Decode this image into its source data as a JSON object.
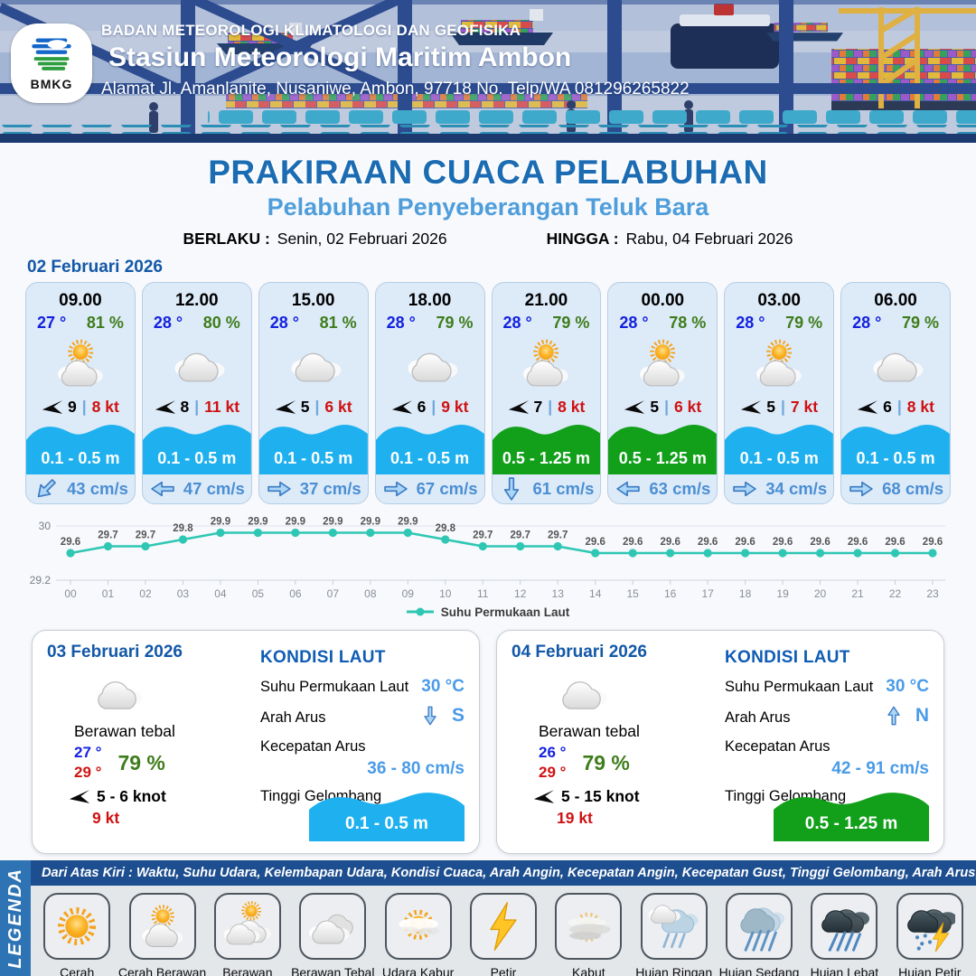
{
  "header": {
    "logo_text": "BMKG",
    "org": "BADAN METEOROLOGI KLIMATOLOGI DAN GEOFISIKA",
    "station": "Stasiun Meteorologi Maritim Ambon",
    "address": "Alamat Jl. Amanlanite, Nusaniwe, Ambon, 97718   No. Telp/WA  081296265822"
  },
  "title": {
    "main": "PRAKIRAAN CUACA PELABUHAN",
    "sub": "Pelabuhan Penyeberangan Teluk Bara",
    "berlaku_label": "BERLAKU :",
    "berlaku_value": "Senin, 02 Februari 2026",
    "hingga_label": "HINGGA :",
    "hingga_value": "Rabu, 04 Februari 2026"
  },
  "colors": {
    "wave_blue": "#1fb1ef",
    "wave_green": "#12a01b",
    "accent_blue": "#1b6cb3",
    "chart_teal": "#2fc7b4"
  },
  "forecast": {
    "date": "02 Februari 2026",
    "cards": [
      {
        "time": "09.00",
        "temp": "27 °",
        "humidity": "81 %",
        "icon": "sun-cloud",
        "wind": "9",
        "gust": "8 kt",
        "wave": "0.1 - 0.5 m",
        "wave_color": "#1fb1ef",
        "current": "43 cm/s",
        "current_dir": "sw"
      },
      {
        "time": "12.00",
        "temp": "28 °",
        "humidity": "80 %",
        "icon": "cloud",
        "wind": "8",
        "gust": "11 kt",
        "wave": "0.1 - 0.5 m",
        "wave_color": "#1fb1ef",
        "current": "47 cm/s",
        "current_dir": "w"
      },
      {
        "time": "15.00",
        "temp": "28 °",
        "humidity": "81 %",
        "icon": "cloud",
        "wind": "5",
        "gust": "6 kt",
        "wave": "0.1 - 0.5 m",
        "wave_color": "#1fb1ef",
        "current": "37 cm/s",
        "current_dir": "e"
      },
      {
        "time": "18.00",
        "temp": "28 °",
        "humidity": "79 %",
        "icon": "cloud",
        "wind": "6",
        "gust": "9 kt",
        "wave": "0.1 - 0.5 m",
        "wave_color": "#1fb1ef",
        "current": "67 cm/s",
        "current_dir": "e"
      },
      {
        "time": "21.00",
        "temp": "28 °",
        "humidity": "79 %",
        "icon": "sun-cloud",
        "wind": "7",
        "gust": "8 kt",
        "wave": "0.5 - 1.25 m",
        "wave_color": "#12a01b",
        "current": "61 cm/s",
        "current_dir": "s"
      },
      {
        "time": "00.00",
        "temp": "28 °",
        "humidity": "78 %",
        "icon": "sun-cloud",
        "wind": "5",
        "gust": "6 kt",
        "wave": "0.5 - 1.25 m",
        "wave_color": "#12a01b",
        "current": "63 cm/s",
        "current_dir": "w"
      },
      {
        "time": "03.00",
        "temp": "28 °",
        "humidity": "79 %",
        "icon": "sun-cloud",
        "wind": "5",
        "gust": "7 kt",
        "wave": "0.1 - 0.5 m",
        "wave_color": "#1fb1ef",
        "current": "34 cm/s",
        "current_dir": "e"
      },
      {
        "time": "06.00",
        "temp": "28 °",
        "humidity": "79 %",
        "icon": "cloud",
        "wind": "6",
        "gust": "8 kt",
        "wave": "0.1 - 0.5 m",
        "wave_color": "#1fb1ef",
        "current": "68 cm/s",
        "current_dir": "e"
      }
    ]
  },
  "chart_data": {
    "type": "line",
    "legend": "Suhu Permukaan Laut",
    "x": [
      "00",
      "01",
      "02",
      "03",
      "04",
      "05",
      "06",
      "07",
      "08",
      "09",
      "10",
      "11",
      "12",
      "13",
      "14",
      "15",
      "16",
      "17",
      "18",
      "19",
      "20",
      "21",
      "22",
      "23"
    ],
    "values": [
      29.6,
      29.7,
      29.7,
      29.8,
      29.9,
      29.9,
      29.9,
      29.9,
      29.9,
      29.9,
      29.8,
      29.7,
      29.7,
      29.7,
      29.6,
      29.6,
      29.6,
      29.6,
      29.6,
      29.6,
      29.6,
      29.6,
      29.6,
      29.6
    ],
    "ylim": [
      29.2,
      30
    ],
    "yticks": [
      "30",
      "29.2"
    ],
    "color": "#2fc7b4",
    "grid": true,
    "legend_position": "bottom"
  },
  "days": [
    {
      "date": "03 Februari 2026",
      "icon": "cloud",
      "condition": "Berawan tebal",
      "temp_min": "27 °",
      "temp_max": "29 °",
      "humidity": "79 %",
      "wind": "5  - 6 knot",
      "gust": "9 kt",
      "sea": {
        "title": "KONDISI LAUT",
        "sst_label": "Suhu Permukaan Laut",
        "sst": "30 °C",
        "dir_label": "Arah Arus",
        "dir": "S",
        "dir_arrow": "s",
        "speed_label": "Kecepatan Arus",
        "speed": "36 - 80 cm/s",
        "wave_label": "Tinggi Gelombang",
        "wave": "0.1 - 0.5 m",
        "wave_color": "#1fb1ef"
      }
    },
    {
      "date": "04 Februari 2026",
      "icon": "cloud",
      "condition": "Berawan tebal",
      "temp_min": "26 °",
      "temp_max": "29 °",
      "humidity": "79 %",
      "wind": "5  - 15 knot",
      "gust": "19 kt",
      "sea": {
        "title": "KONDISI LAUT",
        "sst_label": "Suhu Permukaan Laut",
        "sst": "30 °C",
        "dir_label": "Arah Arus",
        "dir": "N",
        "dir_arrow": "n",
        "speed_label": "Kecepatan Arus",
        "speed": "42 - 91 cm/s",
        "wave_label": "Tinggi Gelombang",
        "wave": "0.5 - 1.25 m",
        "wave_color": "#12a01b"
      }
    }
  ],
  "legend": {
    "sidebar": "LEGENDA",
    "caption": "Dari Atas Kiri : Waktu, Suhu Udara, Kelembapan Udara, Kondisi Cuaca, Arah Angin, Kecepatan Angin, Kecepatan Gust, Tinggi Gelombang, Arah Arus, Kecepatan Arus",
    "items": [
      {
        "label": "Cerah",
        "icon": "sun"
      },
      {
        "label": "Cerah Berawan",
        "icon": "sun-cloud"
      },
      {
        "label": "Berawan",
        "icon": "cloud-sun"
      },
      {
        "label": "Berawan Tebal",
        "icon": "thick-cloud"
      },
      {
        "label": "Udara Kabur",
        "icon": "haze"
      },
      {
        "label": "Petir",
        "icon": "bolt"
      },
      {
        "label": "Kabut",
        "icon": "fog"
      },
      {
        "label": "Hujan Ringan",
        "icon": "rain-light"
      },
      {
        "label": "Hujan Sedang",
        "icon": "rain-med"
      },
      {
        "label": "Hujan Lebat",
        "icon": "rain-heavy"
      },
      {
        "label": "Hujan Petir",
        "icon": "rain-bolt"
      }
    ]
  }
}
